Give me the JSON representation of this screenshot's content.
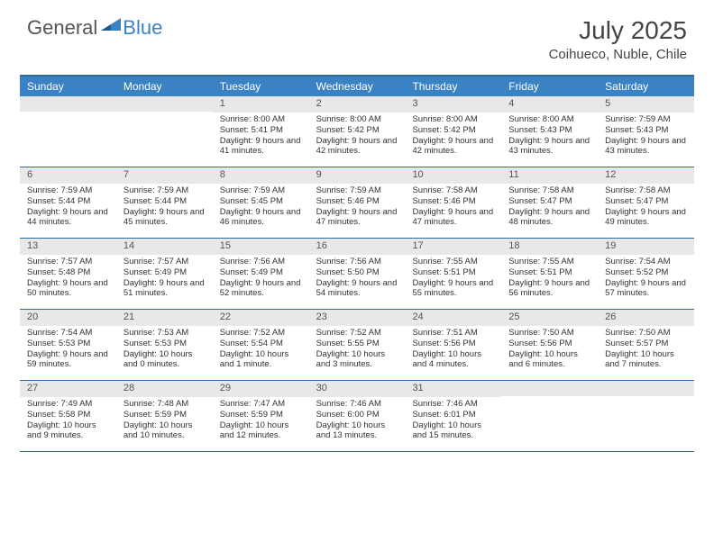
{
  "brand": {
    "part1": "General",
    "part2": "Blue"
  },
  "title": "July 2025",
  "location": "Coihueco, Nuble, Chile",
  "colors": {
    "header_bar": "#3b82c4",
    "border": "#2d6ca2",
    "daynum_bg": "#e8e8e8",
    "text": "#333333"
  },
  "day_names": [
    "Sunday",
    "Monday",
    "Tuesday",
    "Wednesday",
    "Thursday",
    "Friday",
    "Saturday"
  ],
  "weeks": [
    [
      {
        "n": "",
        "sr": "",
        "ss": "",
        "dl": ""
      },
      {
        "n": "",
        "sr": "",
        "ss": "",
        "dl": ""
      },
      {
        "n": "1",
        "sr": "8:00 AM",
        "ss": "5:41 PM",
        "dl": "9 hours and 41 minutes."
      },
      {
        "n": "2",
        "sr": "8:00 AM",
        "ss": "5:42 PM",
        "dl": "9 hours and 42 minutes."
      },
      {
        "n": "3",
        "sr": "8:00 AM",
        "ss": "5:42 PM",
        "dl": "9 hours and 42 minutes."
      },
      {
        "n": "4",
        "sr": "8:00 AM",
        "ss": "5:43 PM",
        "dl": "9 hours and 43 minutes."
      },
      {
        "n": "5",
        "sr": "7:59 AM",
        "ss": "5:43 PM",
        "dl": "9 hours and 43 minutes."
      }
    ],
    [
      {
        "n": "6",
        "sr": "7:59 AM",
        "ss": "5:44 PM",
        "dl": "9 hours and 44 minutes."
      },
      {
        "n": "7",
        "sr": "7:59 AM",
        "ss": "5:44 PM",
        "dl": "9 hours and 45 minutes."
      },
      {
        "n": "8",
        "sr": "7:59 AM",
        "ss": "5:45 PM",
        "dl": "9 hours and 46 minutes."
      },
      {
        "n": "9",
        "sr": "7:59 AM",
        "ss": "5:46 PM",
        "dl": "9 hours and 47 minutes."
      },
      {
        "n": "10",
        "sr": "7:58 AM",
        "ss": "5:46 PM",
        "dl": "9 hours and 47 minutes."
      },
      {
        "n": "11",
        "sr": "7:58 AM",
        "ss": "5:47 PM",
        "dl": "9 hours and 48 minutes."
      },
      {
        "n": "12",
        "sr": "7:58 AM",
        "ss": "5:47 PM",
        "dl": "9 hours and 49 minutes."
      }
    ],
    [
      {
        "n": "13",
        "sr": "7:57 AM",
        "ss": "5:48 PM",
        "dl": "9 hours and 50 minutes."
      },
      {
        "n": "14",
        "sr": "7:57 AM",
        "ss": "5:49 PM",
        "dl": "9 hours and 51 minutes."
      },
      {
        "n": "15",
        "sr": "7:56 AM",
        "ss": "5:49 PM",
        "dl": "9 hours and 52 minutes."
      },
      {
        "n": "16",
        "sr": "7:56 AM",
        "ss": "5:50 PM",
        "dl": "9 hours and 54 minutes."
      },
      {
        "n": "17",
        "sr": "7:55 AM",
        "ss": "5:51 PM",
        "dl": "9 hours and 55 minutes."
      },
      {
        "n": "18",
        "sr": "7:55 AM",
        "ss": "5:51 PM",
        "dl": "9 hours and 56 minutes."
      },
      {
        "n": "19",
        "sr": "7:54 AM",
        "ss": "5:52 PM",
        "dl": "9 hours and 57 minutes."
      }
    ],
    [
      {
        "n": "20",
        "sr": "7:54 AM",
        "ss": "5:53 PM",
        "dl": "9 hours and 59 minutes."
      },
      {
        "n": "21",
        "sr": "7:53 AM",
        "ss": "5:53 PM",
        "dl": "10 hours and 0 minutes."
      },
      {
        "n": "22",
        "sr": "7:52 AM",
        "ss": "5:54 PM",
        "dl": "10 hours and 1 minute."
      },
      {
        "n": "23",
        "sr": "7:52 AM",
        "ss": "5:55 PM",
        "dl": "10 hours and 3 minutes."
      },
      {
        "n": "24",
        "sr": "7:51 AM",
        "ss": "5:56 PM",
        "dl": "10 hours and 4 minutes."
      },
      {
        "n": "25",
        "sr": "7:50 AM",
        "ss": "5:56 PM",
        "dl": "10 hours and 6 minutes."
      },
      {
        "n": "26",
        "sr": "7:50 AM",
        "ss": "5:57 PM",
        "dl": "10 hours and 7 minutes."
      }
    ],
    [
      {
        "n": "27",
        "sr": "7:49 AM",
        "ss": "5:58 PM",
        "dl": "10 hours and 9 minutes."
      },
      {
        "n": "28",
        "sr": "7:48 AM",
        "ss": "5:59 PM",
        "dl": "10 hours and 10 minutes."
      },
      {
        "n": "29",
        "sr": "7:47 AM",
        "ss": "5:59 PM",
        "dl": "10 hours and 12 minutes."
      },
      {
        "n": "30",
        "sr": "7:46 AM",
        "ss": "6:00 PM",
        "dl": "10 hours and 13 minutes."
      },
      {
        "n": "31",
        "sr": "7:46 AM",
        "ss": "6:01 PM",
        "dl": "10 hours and 15 minutes."
      },
      {
        "n": "",
        "sr": "",
        "ss": "",
        "dl": ""
      },
      {
        "n": "",
        "sr": "",
        "ss": "",
        "dl": ""
      }
    ]
  ],
  "labels": {
    "sunrise": "Sunrise: ",
    "sunset": "Sunset: ",
    "daylight": "Daylight: "
  }
}
